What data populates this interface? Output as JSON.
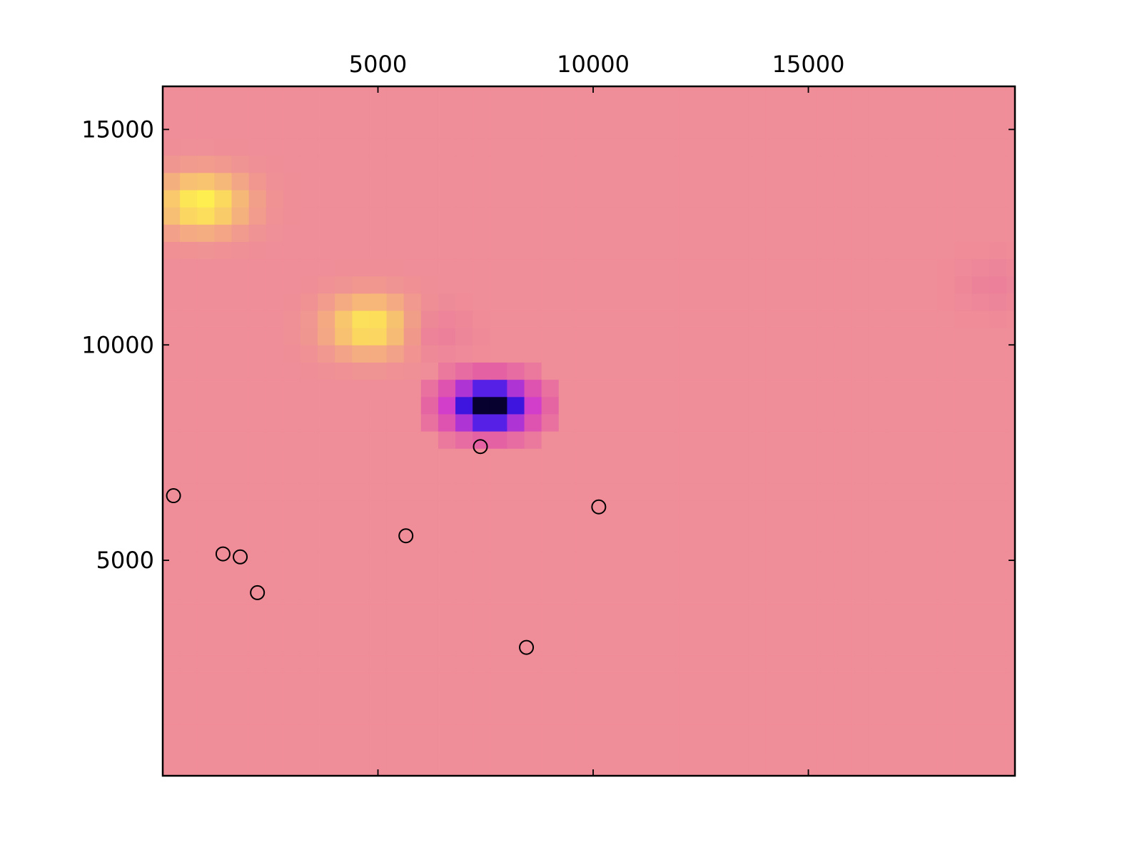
{
  "chart_data": {
    "type": "heatmap",
    "title": "",
    "xlabel": "",
    "ylabel": "",
    "x_axis_position": "top",
    "xlim": [
      0,
      19800
    ],
    "ylim": [
      0,
      16000
    ],
    "xticks": [
      5000,
      10000,
      15000
    ],
    "yticks": [
      5000,
      10000,
      15000
    ],
    "xtick_labels": [
      "5000",
      "10000",
      "15000"
    ],
    "ytick_labels": [
      "5000",
      "10000",
      "15000"
    ],
    "grid": false,
    "legend": "none",
    "heatmap": {
      "cell_size": 400,
      "background_color": "#ef8d98",
      "blobs": [
        {
          "x": 900,
          "y": 13300,
          "sx": 1000,
          "sy": 650,
          "color": "#fff14d",
          "strength": 1.0
        },
        {
          "x": 4800,
          "y": 10450,
          "sx": 950,
          "sy": 650,
          "color": "#fff14d",
          "strength": 0.9
        },
        {
          "x": 6400,
          "y": 10300,
          "sx": 700,
          "sy": 550,
          "color": "#e8709e",
          "strength": 0.55
        },
        {
          "x": 19300,
          "y": 11400,
          "sx": 700,
          "sy": 550,
          "color": "#e8709e",
          "strength": 0.45
        }
      ],
      "dark_spot": {
        "x": 7600,
        "y": 8600,
        "sx": 1100,
        "sy": 650,
        "levels": [
          {
            "t": 0.0,
            "color": "#ef8d98"
          },
          {
            "t": 0.25,
            "color": "#e25aa6"
          },
          {
            "t": 0.45,
            "color": "#d13ccc"
          },
          {
            "t": 0.65,
            "color": "#5b22e8"
          },
          {
            "t": 0.85,
            "color": "#1a05d2"
          },
          {
            "t": 1.0,
            "color": "#000000"
          }
        ]
      }
    },
    "points": [
      {
        "x": 250,
        "y": 6500
      },
      {
        "x": 1400,
        "y": 5150
      },
      {
        "x": 1800,
        "y": 5080
      },
      {
        "x": 2200,
        "y": 4250
      },
      {
        "x": 5650,
        "y": 5570
      },
      {
        "x": 7380,
        "y": 7640
      },
      {
        "x": 8450,
        "y": 2980
      },
      {
        "x": 10130,
        "y": 6240
      }
    ],
    "marker": {
      "shape": "open-circle",
      "color": "#000000"
    }
  }
}
